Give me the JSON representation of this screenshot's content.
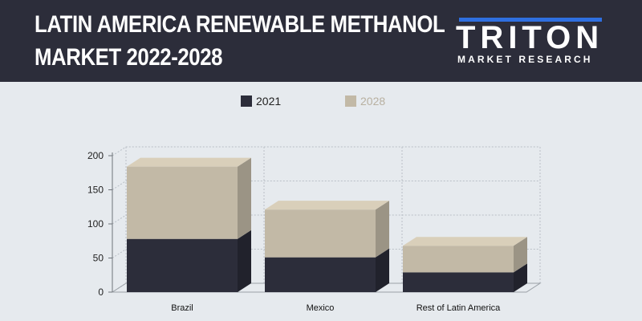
{
  "header": {
    "title_line1": "LATIN AMERICA RENEWABLE METHANOL",
    "title_line2": "MARKET 2022-2028",
    "logo_word": "TRITON",
    "logo_sub": "MARKET RESEARCH"
  },
  "colors": {
    "header_bg": "#2c2d3a",
    "series_2021": "#2c2d3a",
    "series_2028": "#c2b9a6",
    "logo_accent": "#2f6fe0"
  },
  "chart_data": {
    "type": "bar",
    "stacked": true,
    "style": "3d",
    "categories": [
      "Brazil",
      "Mexico",
      "Rest of Latin America"
    ],
    "series": [
      {
        "name": "2021",
        "values": [
          78,
          51,
          29
        ],
        "color": "#2c2d3a"
      },
      {
        "name": "2028",
        "values": [
          106,
          70,
          39
        ],
        "color": "#c2b9a6"
      }
    ],
    "yticks": [
      0,
      50,
      100,
      150,
      200
    ],
    "ylim": [
      0,
      200
    ],
    "grid": true,
    "legend": "top-center"
  }
}
